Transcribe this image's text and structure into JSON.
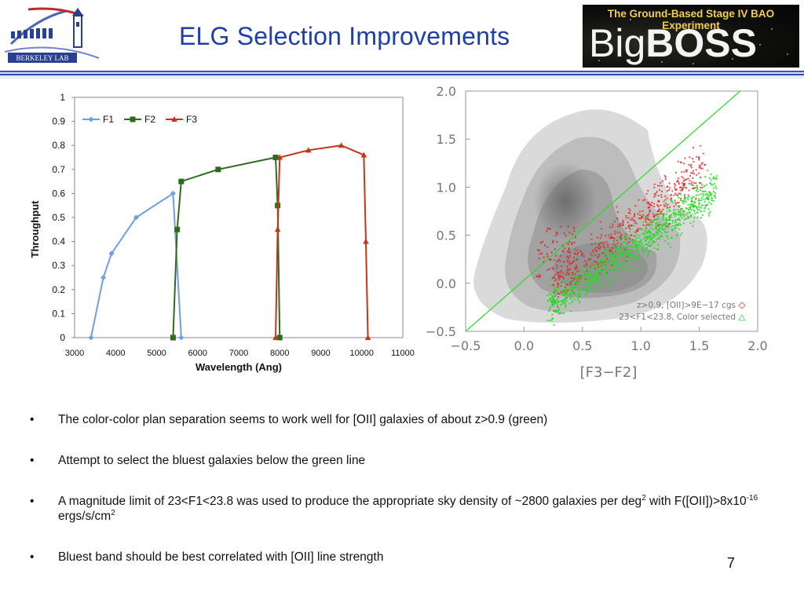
{
  "slide": {
    "title": "ELG Selection Improvements",
    "page_number": "7"
  },
  "logos": {
    "lab_name": "BERKELEY LAB",
    "experiment_tagline": "The Ground-Based Stage IV BAO Experiment",
    "experiment_name_light": "Big",
    "experiment_name_bold": "BOSS"
  },
  "bullets": [
    {
      "text": "The color-color plan separation seems to work well for [OII] galaxies of about z>0.9 (green)"
    },
    {
      "text": "Attempt to select the bluest galaxies below the green line"
    },
    {
      "pre": "A magnitude limit of 23<F1<23.8 was used to produce the appropriate sky density of ~2800 galaxies per deg",
      "sup1": "2",
      "mid1": " with F([OII])>8x10",
      "sup2": "-16",
      "mid2": " ergs/s/cm",
      "sup3": "2"
    },
    {
      "text": "Bluest band should be best correlated with [OII] line strength"
    }
  ],
  "colors": {
    "title_blue": "#1f3fa8",
    "F1": "#6f9ee8",
    "F2": "#2e6b1f",
    "F3": "#c2371b",
    "green_points": "#22dd22",
    "red_points": "#e02020"
  },
  "chart_data": [
    {
      "type": "line",
      "xlabel": "Wavelength (Ang)",
      "ylabel": "Throughput",
      "xlim": [
        3000,
        11000
      ],
      "ylim": [
        0,
        1
      ],
      "xticks": [
        3000,
        4000,
        5000,
        6000,
        7000,
        8000,
        9000,
        10000,
        11000
      ],
      "yticks": [
        "0",
        "0.1",
        "0.2",
        "0.3",
        "0.4",
        "0.5",
        "0.6",
        "0.7",
        "0.8",
        "0.9",
        "1"
      ],
      "legend_position": "top-left",
      "grid": false,
      "series": [
        {
          "name": "F1",
          "marker": "diamond",
          "x": [
            3400,
            3700,
            3900,
            4500,
            5400,
            5600
          ],
          "y": [
            0,
            0.25,
            0.35,
            0.5,
            0.6,
            0
          ]
        },
        {
          "name": "F2",
          "marker": "square",
          "x": [
            5400,
            5500,
            5600,
            6500,
            7900,
            7950,
            8000
          ],
          "y": [
            0,
            0.45,
            0.65,
            0.7,
            0.75,
            0.55,
            0
          ]
        },
        {
          "name": "F3",
          "marker": "triangle",
          "x": [
            7900,
            7950,
            8000,
            8700,
            9500,
            10050,
            10100,
            10150
          ],
          "y": [
            0,
            0.45,
            0.75,
            0.78,
            0.8,
            0.76,
            0.4,
            0
          ]
        }
      ]
    },
    {
      "type": "scatter",
      "xlabel": "[F3−F2]",
      "xlim": [
        -0.5,
        2.0
      ],
      "ylim": [
        -0.5,
        2.0
      ],
      "xticks": [
        "−0.5",
        "0.0",
        "0.5",
        "1.0",
        "1.5",
        "2.0"
      ],
      "yticks": [
        "−0.5",
        "0.0",
        "0.5",
        "1.0",
        "1.5",
        "2.0"
      ],
      "grid": false,
      "legend_position": "bottom-right",
      "selection_line": {
        "x": [
          -0.5,
          1.85
        ],
        "y": [
          -0.5,
          2.0
        ]
      },
      "density_contours_gray": true,
      "series": [
        {
          "name": "z>0.9, [OII]>9E−17 cgs",
          "marker": "diamond",
          "color": "#e02020"
        },
        {
          "name": "23<F1<23.8, Color selected",
          "marker": "triangle",
          "color": "#22dd22"
        }
      ]
    }
  ]
}
